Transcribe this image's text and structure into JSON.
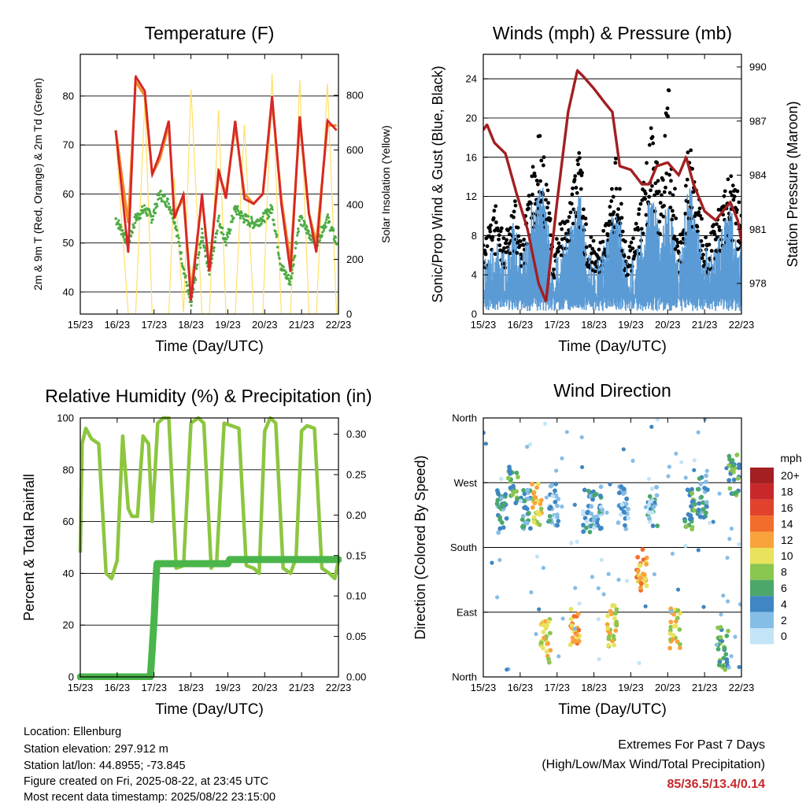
{
  "ticks_time": [
    "15/23",
    "16/23",
    "17/23",
    "18/23",
    "19/23",
    "20/23",
    "21/23",
    "22/23"
  ],
  "colors": {
    "t2m": "#d62728",
    "t9m": "#f28c28",
    "dew": "#4cab43",
    "solar": "#ffe066",
    "wind": "#5b9bd5",
    "gust": "#000000",
    "pressure": "#a31f22",
    "rh": "#8cc63f",
    "precip": "#4ab54a",
    "extremes": "#c8282a"
  },
  "chart_data": [
    {
      "type": "line",
      "title": "Temperature (F)",
      "xlabel": "Time (Day/UTC)",
      "ylabel": "2m & 9m T (Red, Orange) & 2m Td (Green)",
      "y2label": "Solar Insolation (Yellow)",
      "ylim": [
        35.5,
        88.5
      ],
      "y2lim": [
        0,
        950
      ],
      "yticks": [
        "40",
        "50",
        "60",
        "70",
        "80"
      ],
      "y2ticks": [
        "0",
        "200",
        "400",
        "600",
        "800"
      ],
      "grid": true,
      "x": [
        15.96,
        16.3,
        16.5,
        16.75,
        16.95,
        17.15,
        17.4,
        17.55,
        17.8,
        18.0,
        18.3,
        18.5,
        18.75,
        18.95,
        19.2,
        19.45,
        19.7,
        19.95,
        20.2,
        20.45,
        20.7,
        20.95,
        21.2,
        21.4,
        21.7,
        21.95
      ],
      "series": [
        {
          "name": "2m T",
          "values": [
            73,
            48,
            84,
            81,
            64,
            68,
            75,
            55,
            60,
            38,
            60,
            44,
            65,
            59,
            75,
            59,
            58,
            60,
            80,
            58,
            44,
            76,
            56,
            48,
            75,
            73
          ]
        },
        {
          "name": "9m T",
          "values": [
            73,
            54,
            83,
            80,
            64,
            67,
            74,
            56,
            59,
            40,
            59,
            45,
            64,
            60,
            74,
            60,
            58,
            60,
            79,
            59,
            46,
            75,
            56,
            50,
            74,
            74
          ]
        },
        {
          "name": "2m Td",
          "values": [
            55,
            50,
            55,
            57,
            55,
            60,
            58,
            55,
            45,
            37,
            52,
            44,
            55,
            50,
            57,
            55,
            54,
            55,
            57,
            45,
            42,
            55,
            52,
            50,
            55,
            50
          ]
        },
        {
          "name": "Solar Insolation",
          "values": [
            650,
            0,
            0,
            780,
            0,
            0,
            0,
            500,
            0,
            830,
            0,
            0,
            750,
            0,
            0,
            700,
            0,
            0,
            880,
            0,
            0,
            860,
            0,
            0,
            850,
            0
          ]
        }
      ]
    },
    {
      "type": "scatter",
      "title": "Winds (mph) & Pressure (mb)",
      "xlabel": "Time (Day/UTC)",
      "ylabel": "Sonic/Prop Wind & Gust (Blue, Black)",
      "y2label": "Station Pressure (Maroon)",
      "ylim": [
        0,
        26.5
      ],
      "y2lim": [
        976.3,
        990.7
      ],
      "yticks": [
        "0",
        "4",
        "8",
        "12",
        "16",
        "20",
        "24"
      ],
      "y2ticks": [
        "978",
        "981",
        "984",
        "987",
        "990"
      ],
      "grid": true,
      "pressure": {
        "x": [
          15.0,
          15.1,
          15.3,
          15.6,
          15.9,
          16.2,
          16.5,
          16.7,
          17.0,
          17.3,
          17.55,
          17.7,
          18.0,
          18.3,
          18.5,
          18.7,
          19.0,
          19.3,
          19.5,
          19.7,
          20.0,
          20.3,
          20.5,
          20.7,
          21.0,
          21.3,
          21.5,
          21.7,
          21.9,
          22.0
        ],
        "values": [
          986.5,
          986.8,
          985.8,
          985.2,
          983.0,
          981.0,
          978.0,
          977.0,
          982.5,
          987.5,
          989.8,
          989.5,
          988.8,
          988.0,
          987.5,
          984.5,
          984.3,
          983.5,
          983.5,
          984.5,
          984.7,
          984.0,
          985.0,
          983.5,
          982.0,
          981.5,
          982.0,
          982.5,
          981.5,
          980.3
        ]
      },
      "wind_peaks": {
        "x": [
          15.0,
          15.3,
          15.6,
          15.8,
          16.1,
          16.3,
          16.6,
          16.9,
          17.1,
          17.3,
          17.6,
          17.8,
          18.1,
          18.4,
          18.6,
          18.9,
          19.1,
          19.4,
          19.6,
          19.8,
          20.0,
          20.3,
          20.6,
          20.9,
          21.1,
          21.4,
          21.7,
          21.9
        ],
        "wind": [
          3,
          5,
          4,
          7,
          4,
          9,
          11,
          3,
          5,
          6,
          11,
          5,
          3,
          6,
          10,
          3,
          4,
          8,
          11,
          6,
          10,
          3,
          12,
          5,
          4,
          6,
          9,
          5
        ],
        "gust": [
          7,
          11,
          8,
          12,
          8,
          15,
          19,
          6,
          9,
          10,
          17,
          9,
          6,
          11,
          16,
          6,
          8,
          14,
          20,
          11,
          24,
          6,
          18,
          10,
          7,
          11,
          14,
          12
        ]
      }
    },
    {
      "type": "line",
      "title": "Relative Humidity (%) & Precipitation (in)",
      "xlabel": "Time (Day/UTC)",
      "ylabel": "Percent & Total Rainfall",
      "ylim": [
        0,
        100
      ],
      "y2lim": [
        0,
        0.32
      ],
      "yticks": [
        "0",
        "20",
        "40",
        "60",
        "80",
        "100"
      ],
      "y2ticks": [
        "0.00",
        "0.05",
        "0.10",
        "0.15",
        "0.20",
        "0.25",
        "0.30"
      ],
      "grid": true,
      "rh": {
        "x": [
          15.0,
          15.05,
          15.15,
          15.3,
          15.5,
          15.7,
          15.85,
          16.0,
          16.15,
          16.3,
          16.4,
          16.55,
          16.7,
          16.85,
          16.95,
          17.1,
          17.25,
          17.4,
          17.6,
          17.8,
          18.0,
          18.2,
          18.35,
          18.55,
          18.7,
          18.9,
          19.1,
          19.3,
          19.5,
          19.7,
          19.85,
          20.0,
          20.15,
          20.3,
          20.5,
          20.7,
          20.85,
          21.0,
          21.15,
          21.35,
          21.55,
          21.75,
          21.9,
          22.0
        ],
        "values": [
          48,
          90,
          96,
          92,
          90,
          40,
          38,
          45,
          93,
          65,
          62,
          62,
          93,
          90,
          60,
          98,
          100,
          100,
          42,
          43,
          98,
          100,
          98,
          42,
          45,
          98,
          97,
          96,
          43,
          42,
          40,
          95,
          100,
          98,
          42,
          40,
          46,
          95,
          97,
          96,
          42,
          40,
          38,
          45
        ]
      },
      "precip": {
        "x": [
          15.0,
          16.9,
          16.93,
          17.0,
          17.05,
          17.08,
          18.0,
          19.0,
          19.05,
          20.0,
          22.0
        ],
        "values": [
          0.0,
          0.0,
          0.02,
          0.07,
          0.12,
          0.14,
          0.14,
          0.14,
          0.145,
          0.145,
          0.145
        ]
      }
    },
    {
      "type": "scatter",
      "title": "Wind Direction",
      "xlabel": "Time (Day/UTC)",
      "ylabel": "Direction (Colored By Speed)",
      "ylim": [
        0,
        360
      ],
      "yticks": [
        "North",
        "East",
        "South",
        "West",
        "North"
      ],
      "grid": true,
      "legend_title": "mph",
      "legend_labels": [
        "20+",
        "18",
        "16",
        "14",
        "12",
        "10",
        "8",
        "6",
        "4",
        "2",
        "0"
      ],
      "legend_colors": [
        "#a31f22",
        "#c8282a",
        "#e0422c",
        "#f26c2b",
        "#f8a33c",
        "#e8e25c",
        "#8ac650",
        "#4ba86a",
        "#3f86c2",
        "#86bde6",
        "#c3e4f7"
      ],
      "clusters": [
        {
          "x": 15.5,
          "dir": 230,
          "speed": 4
        },
        {
          "x": 15.8,
          "dir": 270,
          "speed": 6
        },
        {
          "x": 16.15,
          "dir": 235,
          "speed": 4
        },
        {
          "x": 16.45,
          "dir": 240,
          "speed": 10
        },
        {
          "x": 16.7,
          "dir": 50,
          "speed": 10
        },
        {
          "x": 16.9,
          "dir": 240,
          "speed": 3
        },
        {
          "x": 17.5,
          "dir": 65,
          "speed": 12
        },
        {
          "x": 17.8,
          "dir": 230,
          "speed": 3
        },
        {
          "x": 18.1,
          "dir": 235,
          "speed": 3
        },
        {
          "x": 18.5,
          "dir": 70,
          "speed": 10
        },
        {
          "x": 18.8,
          "dir": 235,
          "speed": 2
        },
        {
          "x": 19.3,
          "dir": 150,
          "speed": 12
        },
        {
          "x": 19.6,
          "dir": 235,
          "speed": 3
        },
        {
          "x": 20.2,
          "dir": 70,
          "speed": 10
        },
        {
          "x": 20.6,
          "dir": 235,
          "speed": 6
        },
        {
          "x": 20.95,
          "dir": 250,
          "speed": 4
        },
        {
          "x": 21.5,
          "dir": 40,
          "speed": 6
        },
        {
          "x": 21.8,
          "dir": 280,
          "speed": 6
        }
      ]
    }
  ],
  "footer": {
    "location": "Location: Ellenburg",
    "elevation": "Station elevation: 297.912 m",
    "latlon": "Station lat/lon: 44.8955; -73.845",
    "created": "Figure created on Fri, 2025-08-22, at 23:45 UTC",
    "recent": "Most recent data timestamp: 2025/08/22 23:15:00"
  },
  "extremes": {
    "title": "Extremes For Past 7 Days",
    "subtitle": "(High/Low/Max Wind/Total Precipitation)",
    "values": "85/36.5/13.4/0.14"
  }
}
